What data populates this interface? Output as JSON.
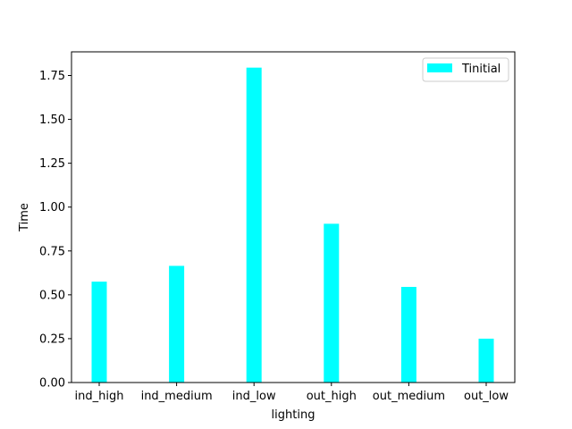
{
  "chart_data": {
    "type": "bar",
    "title": "",
    "xlabel": "lighting",
    "ylabel": "Time",
    "categories": [
      "ind_high",
      "ind_medium",
      "ind_low",
      "out_high",
      "out_medium",
      "out_low"
    ],
    "series": [
      {
        "name": "Tinitial",
        "color": "#00ffff",
        "values": [
          0.575,
          0.665,
          1.795,
          0.905,
          0.545,
          0.25
        ]
      }
    ],
    "ylim": [
      0,
      1.885
    ],
    "yticks": [
      0.0,
      0.25,
      0.5,
      0.75,
      1.0,
      1.25,
      1.5,
      1.75
    ],
    "ytick_labels": [
      "0.00",
      "0.25",
      "0.50",
      "0.75",
      "1.00",
      "1.25",
      "1.50",
      "1.75"
    ],
    "grid": false,
    "legend_position": "top-right"
  }
}
